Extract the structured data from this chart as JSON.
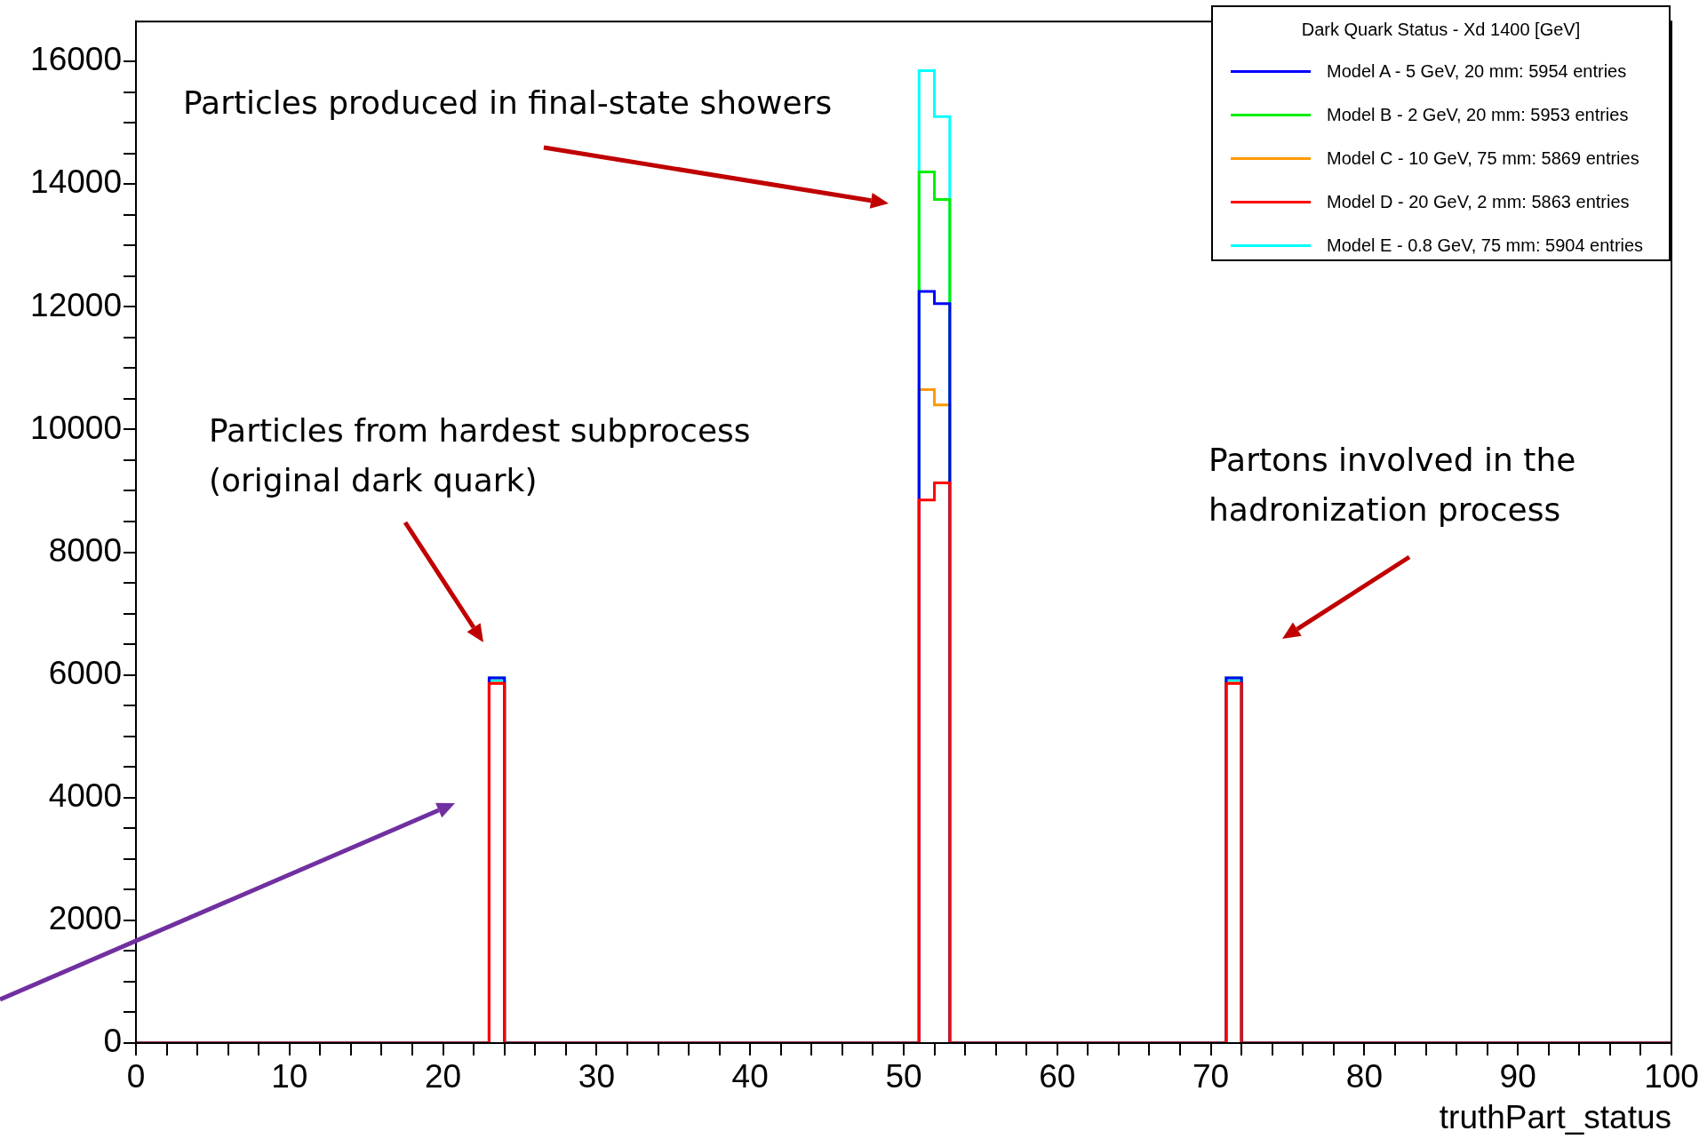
{
  "chart_data": {
    "type": "histogram",
    "xlabel": "truthPart_status",
    "legend_title": "Dark Quark Status - Xd 1400 [GeV]",
    "legend": "top right",
    "grid": false,
    "bins": [
      0,
      23,
      24,
      51,
      52,
      53,
      71,
      72,
      100
    ],
    "series": [
      {
        "name": "Model A - 5 GeV, 20 mm: 5954 entries",
        "color": "#0000ff",
        "values": [
          0,
          5950,
          0,
          12250,
          12050,
          0,
          5950,
          0
        ]
      },
      {
        "name": "Model B - 2 GeV, 20 mm: 5953 entries",
        "color": "#00ee00",
        "values": [
          0,
          5950,
          0,
          14200,
          13750,
          0,
          5950,
          0
        ]
      },
      {
        "name": "Model C - 10 GeV, 75 mm: 5869 entries",
        "color": "#ff9900",
        "values": [
          0,
          5870,
          0,
          10650,
          10400,
          0,
          5870,
          0
        ]
      },
      {
        "name": "Model D - 20 GeV, 2 mm: 5863 entries",
        "color": "#ff0000",
        "values": [
          0,
          5860,
          0,
          8850,
          9130,
          0,
          5860,
          0
        ]
      },
      {
        "name": "Model E - 0.8 GeV, 75 mm: 5904 entries",
        "color": "#00ffff",
        "values": [
          0,
          5900,
          0,
          15850,
          15100,
          0,
          5900,
          0
        ]
      }
    ],
    "xlim": [
      0,
      100
    ],
    "xticks": [
      0,
      {
        "value": 2,
        "label": null
      },
      {
        "value": 4,
        "label": null
      },
      {
        "value": 6,
        "label": null
      },
      {
        "value": 8,
        "label": null
      },
      10,
      {
        "value": 12,
        "label": null
      },
      {
        "value": 14,
        "label": null
      },
      {
        "value": 16,
        "label": null
      },
      {
        "value": 18,
        "label": null
      },
      20,
      {
        "value": 22,
        "label": null
      },
      {
        "value": 24,
        "label": null
      },
      {
        "value": 26,
        "label": null
      },
      {
        "value": 28,
        "label": null
      },
      30,
      {
        "value": 32,
        "label": null
      },
      {
        "value": 34,
        "label": null
      },
      {
        "value": 36,
        "label": null
      },
      {
        "value": 38,
        "label": null
      },
      40,
      {
        "value": 42,
        "label": null
      },
      {
        "value": 44,
        "label": null
      },
      {
        "value": 46,
        "label": null
      },
      {
        "value": 48,
        "label": null
      },
      50,
      {
        "value": 52,
        "label": null
      },
      {
        "value": 54,
        "label": null
      },
      {
        "value": 56,
        "label": null
      },
      {
        "value": 58,
        "label": null
      },
      60,
      {
        "value": 62,
        "label": null
      },
      {
        "value": 64,
        "label": null
      },
      {
        "value": 66,
        "label": null
      },
      {
        "value": 68,
        "label": null
      },
      70,
      {
        "value": 72,
        "label": null
      },
      {
        "value": 74,
        "label": null
      },
      {
        "value": 76,
        "label": null
      },
      {
        "value": 78,
        "label": null
      },
      80,
      {
        "value": 82,
        "label": null
      },
      {
        "value": 84,
        "label": null
      },
      {
        "value": 86,
        "label": null
      },
      {
        "value": 88,
        "label": null
      },
      90,
      {
        "value": 92,
        "label": null
      },
      {
        "value": 94,
        "label": null
      },
      {
        "value": 96,
        "label": null
      },
      {
        "value": 98,
        "label": null
      },
      100
    ],
    "ylim": [
      0,
      16650
    ],
    "yticks": [
      0,
      {
        "value": 500,
        "label": null
      },
      {
        "value": 1000,
        "label": null
      },
      {
        "value": 1500,
        "label": null
      },
      2000,
      {
        "value": 2500,
        "label": null
      },
      {
        "value": 3000,
        "label": null
      },
      {
        "value": 3500,
        "label": null
      },
      4000,
      {
        "value": 4500,
        "label": null
      },
      {
        "value": 5000,
        "label": null
      },
      {
        "value": 5500,
        "label": null
      },
      6000,
      {
        "value": 6500,
        "label": null
      },
      {
        "value": 7000,
        "label": null
      },
      {
        "value": 7500,
        "label": null
      },
      8000,
      {
        "value": 8500,
        "label": null
      },
      {
        "value": 9000,
        "label": null
      },
      {
        "value": 9500,
        "label": null
      },
      10000,
      {
        "value": 10500,
        "label": null
      },
      {
        "value": 11000,
        "label": null
      },
      {
        "value": 11500,
        "label": null
      },
      12000,
      {
        "value": 12500,
        "label": null
      },
      {
        "value": 13000,
        "label": null
      },
      {
        "value": 13500,
        "label": null
      },
      14000,
      {
        "value": 14500,
        "label": null
      },
      {
        "value": 15000,
        "label": null
      },
      {
        "value": 15500,
        "label": null
      },
      16000
    ],
    "annotations": [
      "Particles produced in final-state showers",
      "Particles from hardest subprocess\n(original dark quark)",
      "Partons involved in the\nhadronization process"
    ]
  }
}
